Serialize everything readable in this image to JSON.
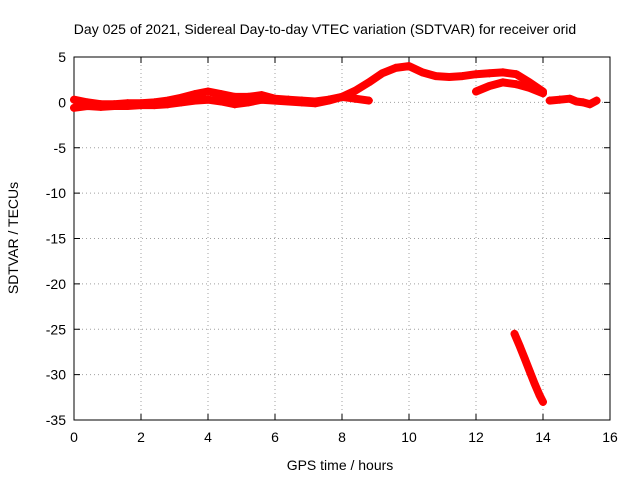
{
  "chart_data": {
    "type": "scatter",
    "title": "Day 025 of 2021, Sidereal Day-to-day VTEC variation (SDTVAR) for receiver orid",
    "xlabel": "GPS time / hours",
    "ylabel": "SDTVAR / TECUs",
    "xlim": [
      0,
      16
    ],
    "ylim": [
      -35,
      5
    ],
    "xticks": [
      0,
      2,
      4,
      6,
      8,
      10,
      12,
      14,
      16
    ],
    "yticks": [
      5,
      0,
      -5,
      -10,
      -15,
      -20,
      -25,
      -30,
      -35
    ],
    "grid": true,
    "legend": "none",
    "marker": "plus",
    "color": "#ff0000",
    "series": [
      {
        "x": [
          0.0,
          0.4,
          0.8,
          1.2,
          1.6,
          2.0,
          2.4,
          2.8,
          3.2,
          3.6,
          4.0,
          4.4,
          4.8,
          5.2,
          5.6,
          6.0,
          6.4,
          6.8,
          7.2,
          7.6,
          8.0,
          8.4,
          8.8,
          9.2,
          9.6,
          10.0,
          10.4,
          10.8,
          11.2,
          11.6,
          12.0,
          12.4,
          12.8,
          13.2,
          13.6,
          14.0
        ],
        "y": [
          0.3,
          0.0,
          -0.2,
          -0.2,
          -0.1,
          -0.1,
          0.0,
          0.2,
          0.5,
          0.9,
          1.2,
          0.9,
          0.6,
          0.6,
          0.8,
          0.4,
          0.3,
          0.2,
          0.1,
          0.3,
          0.6,
          1.3,
          2.2,
          3.2,
          3.8,
          4.0,
          3.3,
          2.9,
          2.8,
          2.9,
          3.1,
          3.2,
          3.3,
          3.1,
          2.2,
          1.2
        ]
      },
      {
        "x": [
          0.0,
          0.4,
          0.8,
          1.2,
          1.6,
          2.0,
          2.4,
          2.8,
          3.2,
          3.6,
          4.0,
          4.4,
          4.8,
          5.2,
          5.6,
          6.0,
          6.4,
          6.8,
          7.2,
          7.6,
          8.0,
          8.4,
          8.8
        ],
        "y": [
          -0.6,
          -0.4,
          -0.5,
          -0.4,
          -0.4,
          -0.3,
          -0.3,
          -0.2,
          0.0,
          0.2,
          0.3,
          0.1,
          -0.2,
          0.0,
          0.3,
          0.2,
          0.1,
          0.0,
          -0.1,
          0.2,
          0.6,
          0.4,
          0.2
        ]
      },
      {
        "x": [
          12.0,
          12.4,
          12.8,
          13.2,
          13.6,
          14.0
        ],
        "y": [
          1.2,
          1.8,
          2.2,
          2.0,
          1.6,
          1.0
        ]
      },
      {
        "x": [
          14.2,
          14.5,
          14.8,
          15.0,
          15.2,
          15.4,
          15.6
        ],
        "y": [
          0.2,
          0.3,
          0.4,
          0.1,
          0.0,
          -0.2,
          0.2
        ]
      },
      {
        "x": [
          13.15,
          13.3,
          13.45,
          13.6,
          13.75,
          13.9,
          14.0
        ],
        "y": [
          -25.5,
          -26.8,
          -28.2,
          -29.6,
          -31.0,
          -32.3,
          -33.0
        ]
      }
    ]
  }
}
